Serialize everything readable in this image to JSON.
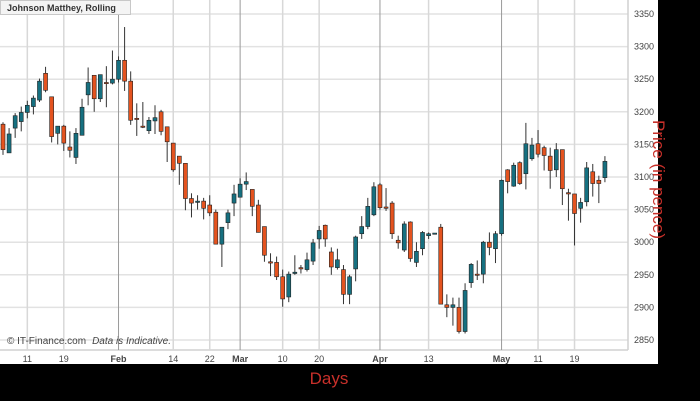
{
  "chart_data": {
    "type": "candlestick",
    "title": "Johnson Matthey, Rolling",
    "xlabel": "Days",
    "ylabel": "Price (in pence)",
    "ylim": [
      2850,
      3350
    ],
    "y_ticks": [
      2850,
      2900,
      2950,
      3000,
      3050,
      3100,
      3150,
      3200,
      3250,
      3300,
      3350
    ],
    "x_ticks": [
      {
        "label": "11",
        "index": 4,
        "month": false
      },
      {
        "label": "19",
        "index": 10,
        "month": false
      },
      {
        "label": "Feb",
        "index": 19,
        "month": true
      },
      {
        "label": "14",
        "index": 28,
        "month": false
      },
      {
        "label": "22",
        "index": 34,
        "month": false
      },
      {
        "label": "Mar",
        "index": 39,
        "month": true
      },
      {
        "label": "10",
        "index": 46,
        "month": false
      },
      {
        "label": "20",
        "index": 52,
        "month": false
      },
      {
        "label": "Apr",
        "index": 62,
        "month": true
      },
      {
        "label": "13",
        "index": 70,
        "month": false
      },
      {
        "label": "May",
        "index": 82,
        "month": true
      },
      {
        "label": "11",
        "index": 88,
        "month": false
      },
      {
        "label": "19",
        "index": 94,
        "month": false
      }
    ],
    "grid": true,
    "colors": {
      "up": "#167080",
      "down": "#e4531f",
      "axis_title": "#c8302a"
    },
    "candles_ohlc": [
      [
        3181,
        3184,
        3134,
        3142
      ],
      [
        3137,
        3175,
        3137,
        3166
      ],
      [
        3175,
        3198,
        3160,
        3194
      ],
      [
        3185,
        3208,
        3170,
        3199
      ],
      [
        3199,
        3217,
        3190,
        3210
      ],
      [
        3208,
        3225,
        3196,
        3221
      ],
      [
        3218,
        3251,
        3215,
        3247
      ],
      [
        3259,
        3269,
        3230,
        3233
      ],
      [
        3223,
        3223,
        3153,
        3162
      ],
      [
        3167,
        3178,
        3150,
        3178
      ],
      [
        3178,
        3180,
        3140,
        3152
      ],
      [
        3146,
        3170,
        3130,
        3141
      ],
      [
        3130,
        3175,
        3120,
        3167
      ],
      [
        3164,
        3220,
        3164,
        3207
      ],
      [
        3226,
        3268,
        3210,
        3245
      ],
      [
        3256,
        3256,
        3200,
        3220
      ],
      [
        3220,
        3257,
        3215,
        3257
      ],
      [
        3245,
        3270,
        3207,
        3244
      ],
      [
        3244,
        3294,
        3242,
        3250
      ],
      [
        3250,
        3285,
        3245,
        3279
      ],
      [
        3279,
        3330,
        3232,
        3247
      ],
      [
        3247,
        3262,
        3180,
        3187
      ],
      [
        3190,
        3213,
        3163,
        3189
      ],
      [
        3178,
        3215,
        3175,
        3177
      ],
      [
        3171,
        3192,
        3166,
        3187
      ],
      [
        3186,
        3210,
        3166,
        3191
      ],
      [
        3200,
        3203,
        3164,
        3170
      ],
      [
        3177,
        3177,
        3123,
        3154
      ],
      [
        3152,
        3152,
        3108,
        3111
      ],
      [
        3132,
        3132,
        3088,
        3121
      ],
      [
        3121,
        3121,
        3049,
        3067
      ],
      [
        3067,
        3075,
        3038,
        3060
      ],
      [
        3061,
        3072,
        3050,
        3063
      ],
      [
        3063,
        3068,
        3035,
        3052
      ],
      [
        3057,
        3072,
        3040,
        3045
      ],
      [
        3046,
        3050,
        2997,
        2997
      ],
      [
        2997,
        3023,
        2962,
        3023
      ],
      [
        3030,
        3050,
        3020,
        3045
      ],
      [
        3060,
        3088,
        3040,
        3074
      ],
      [
        3069,
        3098,
        3069,
        3089
      ],
      [
        3089,
        3107,
        3080,
        3093
      ],
      [
        3081,
        3081,
        3040,
        3055
      ],
      [
        3057,
        3065,
        3015,
        3015
      ],
      [
        3024,
        3024,
        2970,
        2980
      ],
      [
        2970,
        2983,
        2948,
        2968
      ],
      [
        2969,
        2978,
        2942,
        2947
      ],
      [
        2947,
        2958,
        2901,
        2913
      ],
      [
        2916,
        2955,
        2908,
        2951
      ],
      [
        2952,
        2980,
        2950,
        2954
      ],
      [
        2961,
        2965,
        2952,
        2959
      ],
      [
        2958,
        2984,
        2955,
        2973
      ],
      [
        2971,
        3005,
        2965,
        2999
      ],
      [
        3005,
        3025,
        2990,
        3018
      ],
      [
        3026,
        3027,
        2993,
        3005
      ],
      [
        2985,
        2992,
        2950,
        2962
      ],
      [
        2961,
        2990,
        2958,
        2973
      ],
      [
        2958,
        2965,
        2905,
        2920
      ],
      [
        2920,
        2950,
        2905,
        2947
      ],
      [
        2959,
        3010,
        2940,
        3008
      ],
      [
        3013,
        3040,
        3005,
        3024
      ],
      [
        3024,
        3068,
        3020,
        3055
      ],
      [
        3042,
        3092,
        3040,
        3085
      ],
      [
        3088,
        3091,
        3050,
        3053
      ],
      [
        3054,
        3083,
        3048,
        3052
      ],
      [
        3060,
        3063,
        3005,
        3013
      ],
      [
        3003,
        3010,
        2990,
        2999
      ],
      [
        2988,
        3032,
        2985,
        3028
      ],
      [
        3031,
        3032,
        2970,
        2975
      ],
      [
        2969,
        3000,
        2962,
        2986
      ],
      [
        2990,
        3017,
        2980,
        3015
      ],
      [
        3010,
        3015,
        3005,
        3013
      ],
      [
        3014,
        3014,
        3014,
        3014
      ],
      [
        3023,
        3028,
        2905,
        2905
      ],
      [
        2904,
        2920,
        2885,
        2900
      ],
      [
        2900,
        2915,
        2872,
        2904
      ],
      [
        2900,
        2915,
        2860,
        2863
      ],
      [
        2863,
        2937,
        2860,
        2926
      ],
      [
        2938,
        2968,
        2930,
        2966
      ],
      [
        2951,
        2972,
        2942,
        2950
      ],
      [
        2951,
        3002,
        2937,
        3000
      ],
      [
        3000,
        3015,
        2980,
        2992
      ],
      [
        2990,
        3017,
        2968,
        3013
      ],
      [
        3013,
        3096,
        3010,
        3095
      ],
      [
        3111,
        3112,
        3075,
        3093
      ],
      [
        3086,
        3122,
        3085,
        3118
      ],
      [
        3122,
        3124,
        3088,
        3090
      ],
      [
        3105,
        3183,
        3081,
        3151
      ],
      [
        3128,
        3160,
        3125,
        3149
      ],
      [
        3151,
        3172,
        3130,
        3135
      ],
      [
        3145,
        3148,
        3110,
        3133
      ],
      [
        3132,
        3145,
        3082,
        3110
      ],
      [
        3111,
        3152,
        3100,
        3142
      ],
      [
        3142,
        3142,
        3057,
        3082
      ],
      [
        3076,
        3082,
        3033,
        3074
      ],
      [
        3074,
        3074,
        2995,
        3044
      ],
      [
        3052,
        3068,
        3030,
        3061
      ],
      [
        3062,
        3123,
        3055,
        3114
      ],
      [
        3108,
        3120,
        3070,
        3090
      ],
      [
        3095,
        3102,
        3060,
        3090
      ],
      [
        3099,
        3132,
        3092,
        3124
      ]
    ]
  },
  "footer": {
    "copyright": "© IT-Finance.com",
    "disclaimer": "Data is Indicative."
  }
}
